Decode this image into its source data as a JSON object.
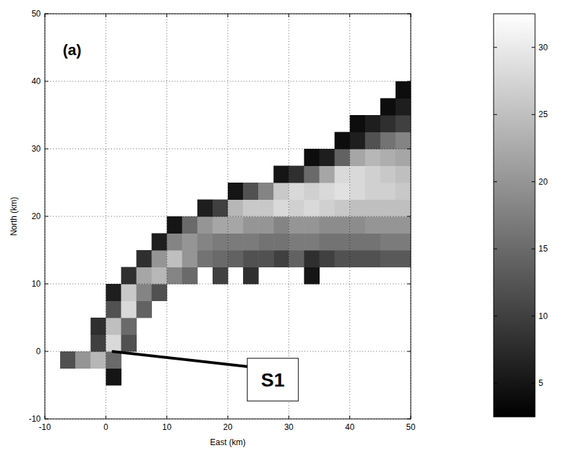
{
  "chart_data": {
    "type": "heatmap",
    "title": "(a)",
    "x_label": "East (km)",
    "y_label": "North (km)",
    "xlim": [
      -10,
      50
    ],
    "ylim": [
      -10,
      50
    ],
    "xticks": [
      -10,
      0,
      10,
      20,
      30,
      40,
      50
    ],
    "yticks": [
      -10,
      0,
      10,
      20,
      30,
      40,
      50
    ],
    "grid": true,
    "x": [
      -8.75,
      -6.25,
      -3.75,
      -1.25,
      1.25,
      3.75,
      6.25,
      8.75,
      11.25,
      13.75,
      16.25,
      18.75,
      21.25,
      23.75,
      26.25,
      28.75,
      31.25,
      33.75,
      36.25,
      38.75,
      41.25,
      43.75,
      46.25,
      48.75
    ],
    "y": [
      -8.75,
      -6.25,
      -3.75,
      -1.25,
      1.25,
      3.75,
      6.25,
      8.75,
      11.25,
      13.75,
      16.25,
      18.75,
      21.25,
      23.75,
      26.25,
      28.75,
      31.25,
      33.75,
      36.25,
      38.75,
      41.25,
      43.75,
      46.25,
      48.75
    ],
    "z": [
      [
        null,
        null,
        null,
        null,
        null,
        null,
        null,
        null,
        null,
        null,
        null,
        null,
        null,
        null,
        null,
        null,
        null,
        null,
        null,
        null,
        null,
        null,
        null,
        null
      ],
      [
        null,
        null,
        null,
        null,
        null,
        null,
        null,
        null,
        null,
        null,
        null,
        null,
        null,
        null,
        null,
        null,
        null,
        null,
        null,
        null,
        null,
        null,
        null,
        null
      ],
      [
        null,
        null,
        null,
        null,
        5,
        null,
        null,
        null,
        null,
        null,
        null,
        null,
        null,
        null,
        null,
        null,
        null,
        null,
        null,
        null,
        null,
        null,
        null,
        null
      ],
      [
        null,
        12,
        20,
        24,
        15,
        null,
        null,
        null,
        null,
        null,
        null,
        null,
        null,
        null,
        null,
        null,
        null,
        null,
        null,
        null,
        null,
        null,
        null,
        null
      ],
      [
        null,
        null,
        null,
        10,
        28,
        12,
        null,
        null,
        null,
        null,
        null,
        null,
        null,
        null,
        null,
        null,
        null,
        null,
        null,
        null,
        null,
        null,
        null,
        null
      ],
      [
        null,
        null,
        null,
        8,
        25,
        15,
        null,
        null,
        null,
        null,
        null,
        null,
        null,
        null,
        null,
        null,
        null,
        null,
        null,
        null,
        null,
        null,
        null,
        null
      ],
      [
        null,
        null,
        null,
        null,
        12,
        28,
        14,
        null,
        null,
        null,
        null,
        null,
        null,
        null,
        null,
        null,
        null,
        null,
        null,
        null,
        null,
        null,
        null,
        null
      ],
      [
        null,
        null,
        null,
        null,
        6,
        26,
        18,
        12,
        null,
        null,
        null,
        null,
        null,
        null,
        null,
        null,
        null,
        null,
        null,
        null,
        null,
        null,
        null,
        null
      ],
      [
        null,
        null,
        null,
        null,
        null,
        8,
        22,
        24,
        18,
        15,
        null,
        10,
        null,
        8,
        null,
        null,
        null,
        5,
        null,
        null,
        null,
        null,
        null,
        null
      ],
      [
        null,
        null,
        null,
        null,
        null,
        null,
        8,
        20,
        25,
        20,
        16,
        15,
        14,
        12,
        12,
        10,
        14,
        8,
        10,
        12,
        12,
        12,
        13,
        13
      ],
      [
        null,
        null,
        null,
        null,
        null,
        null,
        null,
        6,
        18,
        20,
        18,
        17,
        17,
        17,
        16,
        16,
        17,
        17,
        16,
        16,
        16,
        16,
        17,
        17
      ],
      [
        null,
        null,
        null,
        null,
        null,
        null,
        null,
        null,
        5,
        15,
        20,
        22,
        22,
        20,
        20,
        18,
        20,
        20,
        19,
        19,
        19,
        20,
        20,
        20
      ],
      [
        null,
        null,
        null,
        null,
        null,
        null,
        null,
        null,
        null,
        null,
        6,
        10,
        24,
        26,
        26,
        28,
        27,
        28,
        27,
        26,
        25,
        25,
        25,
        25
      ],
      [
        null,
        null,
        null,
        null,
        null,
        null,
        null,
        null,
        null,
        null,
        null,
        null,
        5,
        12,
        18,
        26,
        28,
        27,
        28,
        29,
        28,
        27,
        27,
        26
      ],
      [
        null,
        null,
        null,
        null,
        null,
        null,
        null,
        null,
        null,
        null,
        null,
        null,
        null,
        null,
        null,
        5,
        8,
        15,
        22,
        28,
        28,
        27,
        26,
        25
      ],
      [
        null,
        null,
        null,
        null,
        null,
        null,
        null,
        null,
        null,
        null,
        null,
        null,
        null,
        null,
        null,
        null,
        null,
        4,
        6,
        14,
        22,
        24,
        23,
        22
      ],
      [
        null,
        null,
        null,
        null,
        null,
        null,
        null,
        null,
        null,
        null,
        null,
        null,
        null,
        null,
        null,
        null,
        null,
        null,
        null,
        4,
        6,
        12,
        16,
        18
      ],
      [
        null,
        null,
        null,
        null,
        null,
        null,
        null,
        null,
        null,
        null,
        null,
        null,
        null,
        null,
        null,
        null,
        null,
        null,
        null,
        null,
        4,
        6,
        8,
        10
      ],
      [
        null,
        null,
        null,
        null,
        null,
        null,
        null,
        null,
        null,
        null,
        null,
        null,
        null,
        null,
        null,
        null,
        null,
        null,
        null,
        null,
        null,
        null,
        4,
        6
      ],
      [
        null,
        null,
        null,
        null,
        null,
        null,
        null,
        null,
        null,
        null,
        null,
        null,
        null,
        null,
        null,
        null,
        null,
        null,
        null,
        null,
        null,
        null,
        null,
        4
      ],
      [
        null,
        null,
        null,
        null,
        null,
        null,
        null,
        null,
        null,
        null,
        null,
        null,
        null,
        null,
        null,
        null,
        null,
        null,
        null,
        null,
        null,
        null,
        null,
        null
      ],
      [
        null,
        null,
        null,
        null,
        null,
        null,
        null,
        null,
        null,
        null,
        null,
        null,
        null,
        null,
        null,
        null,
        null,
        null,
        null,
        null,
        null,
        null,
        null,
        null
      ],
      [
        null,
        null,
        null,
        null,
        null,
        null,
        null,
        null,
        null,
        null,
        null,
        null,
        null,
        null,
        null,
        null,
        null,
        null,
        null,
        null,
        null,
        null,
        null,
        null
      ],
      [
        null,
        null,
        null,
        null,
        null,
        null,
        null,
        null,
        null,
        null,
        null,
        null,
        null,
        null,
        null,
        null,
        null,
        null,
        null,
        null,
        null,
        null,
        null,
        null
      ]
    ],
    "color_range": [
      2.5,
      32.5
    ],
    "color_ticks": [
      5,
      10,
      15,
      20,
      25,
      30
    ],
    "annotations": [
      {
        "text": "S1",
        "x": 1,
        "y": 0
      }
    ]
  }
}
